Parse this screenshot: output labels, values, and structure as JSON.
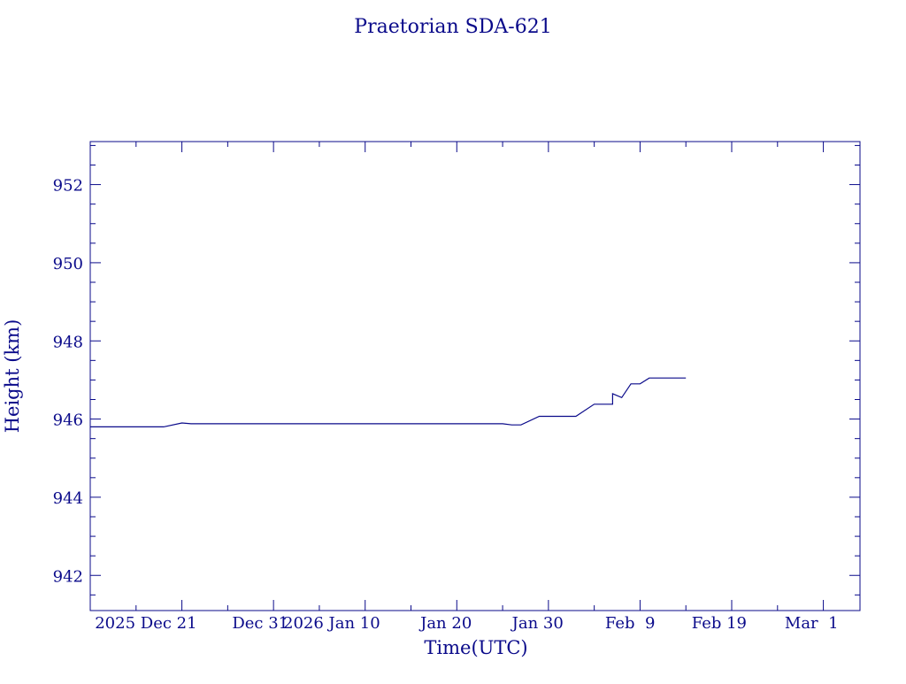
{
  "colors": {
    "ink": "#0a0a8a",
    "background": "#ffffff"
  },
  "chart_data": {
    "type": "line",
    "title": "Praetorian SDA-621",
    "xlabel": "Time(UTC)",
    "ylabel": "Height (km)",
    "grid": false,
    "legend": "none",
    "x_tick_labels": [
      "2025 Dec 21",
      "Dec 31",
      "2026 Jan 10",
      "Jan 20",
      "Jan 30",
      "Feb  9",
      "Feb 19",
      "Mar  1"
    ],
    "x_tick_dates": [
      "2025-12-21",
      "2025-12-31",
      "2026-01-10",
      "2026-01-20",
      "2026-01-30",
      "2026-02-09",
      "2026-02-19",
      "2026-03-01"
    ],
    "xlim": [
      "2025-12-11",
      "2026-03-05"
    ],
    "y_tick_labels": [
      "942",
      "944",
      "946",
      "948",
      "950",
      "952"
    ],
    "ylim": [
      941.1,
      953.1
    ],
    "series": [
      {
        "points": [
          [
            "2025-12-11",
            945.8
          ],
          [
            "2025-12-19",
            945.8
          ],
          [
            "2025-12-21",
            945.9
          ],
          [
            "2025-12-22",
            945.88
          ],
          [
            "2026-01-13",
            945.88
          ],
          [
            "2026-01-25",
            945.88
          ],
          [
            "2026-01-26",
            945.85
          ],
          [
            "2026-01-27",
            945.85
          ],
          [
            "2026-01-29",
            946.07
          ],
          [
            "2026-02-02",
            946.07
          ],
          [
            "2026-02-04",
            946.38
          ],
          [
            "2026-02-06",
            946.38
          ],
          [
            "2026-02-06",
            946.65
          ],
          [
            "2026-02-07",
            946.55
          ],
          [
            "2026-02-08",
            946.9
          ],
          [
            "2026-02-09",
            946.9
          ],
          [
            "2026-02-10",
            947.05
          ],
          [
            "2026-02-14",
            947.05
          ]
        ]
      }
    ]
  }
}
